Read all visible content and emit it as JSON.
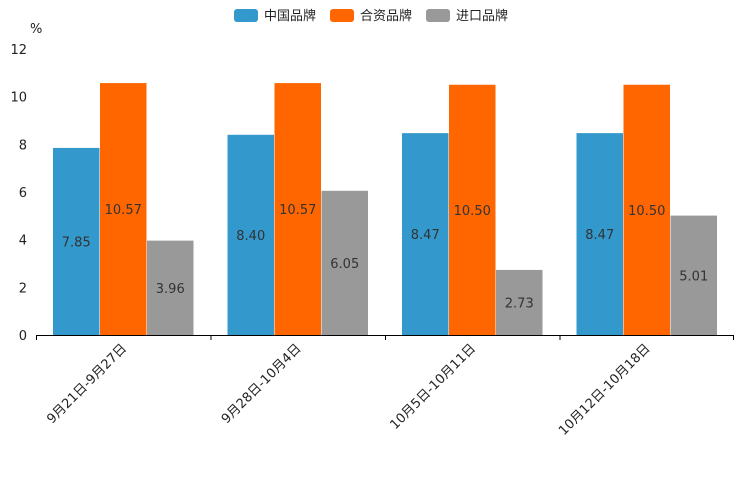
{
  "chart_data": {
    "type": "bar",
    "ylabel": "%",
    "ylim": [
      0,
      12
    ],
    "yticks": [
      "0",
      "2",
      "4",
      "6",
      "8",
      "10",
      "12"
    ],
    "grid": false,
    "legend_position": "top-center",
    "categories": [
      "9月21日-9月27日",
      "9月28日-10月4日",
      "10月5日-10月11日",
      "10月12日-10月18日"
    ],
    "series": [
      {
        "name": "中国品牌",
        "color": "#3399cc",
        "values": [
          7.85,
          8.4,
          8.47,
          8.47
        ],
        "labels": [
          "7.85",
          "8.40",
          "8.47",
          "8.47"
        ]
      },
      {
        "name": "合资品牌",
        "color": "#ff6600",
        "values": [
          10.57,
          10.57,
          10.5,
          10.5
        ],
        "labels": [
          "10.57",
          "10.57",
          "10.50",
          "10.50"
        ]
      },
      {
        "name": "进口品牌",
        "color": "#999999",
        "values": [
          3.96,
          6.05,
          2.73,
          5.01
        ],
        "labels": [
          "3.96",
          "6.05",
          "2.73",
          "5.01"
        ]
      }
    ]
  }
}
